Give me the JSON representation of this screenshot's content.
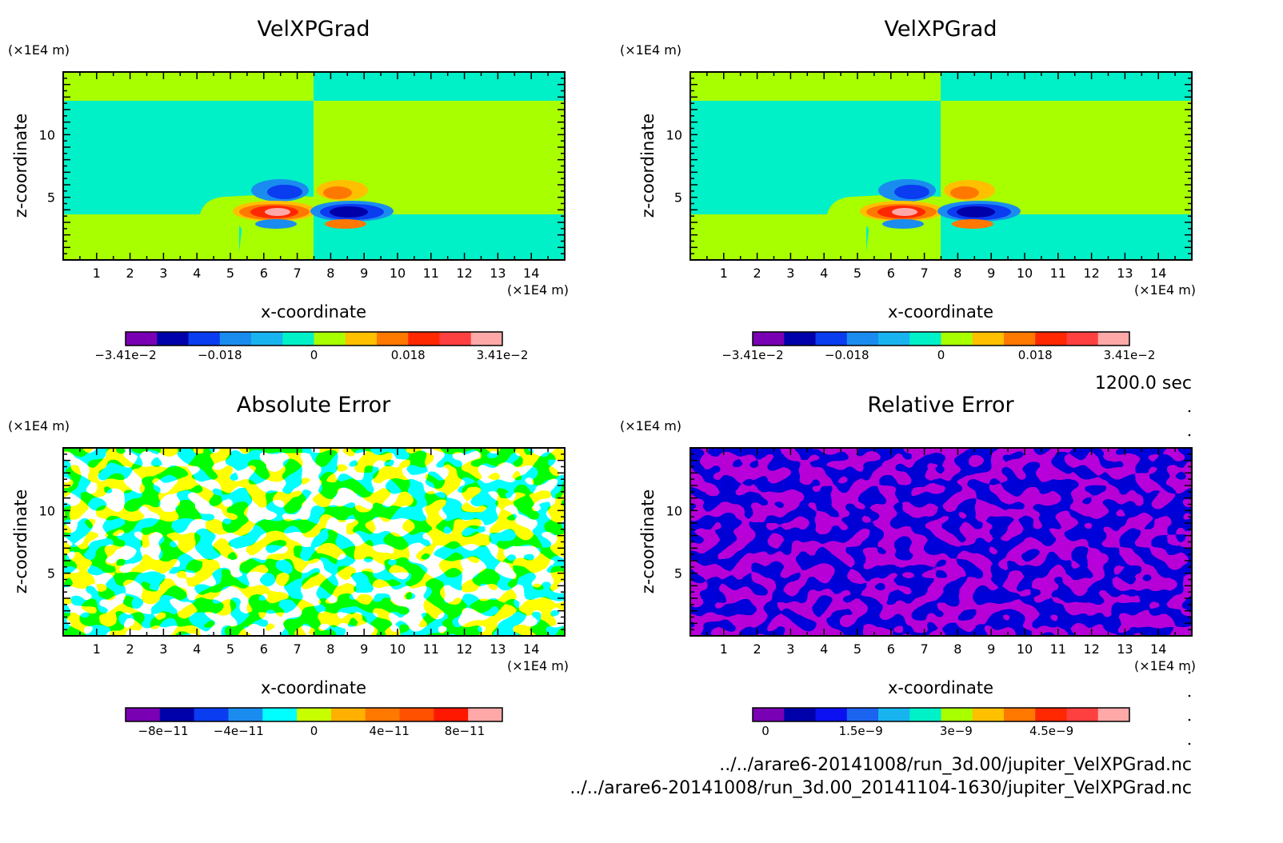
{
  "panel_titles": [
    "VelXPGrad",
    "VelXPGrad",
    "Absolute Error",
    "Relative Error"
  ],
  "time_label": "1200.0 sec",
  "file_paths": [
    "../../arare6-20141008/run_3d.00/jupiter_VelXPGrad.nc",
    "../../arare6-20141008/run_3d.00_20141104-1630/jupiter_VelXPGrad.nc"
  ],
  "chart_data": [
    {
      "type": "heatmap",
      "title": "VelXPGrad",
      "xlabel": "x-coordinate",
      "ylabel": "z-coordinate",
      "x_unit": "(×1E4 m)",
      "y_unit": "(×1E4 m)",
      "xlim": [
        0,
        15
      ],
      "ylim": [
        0,
        15
      ],
      "x_ticks": [
        "1",
        "2",
        "3",
        "4",
        "5",
        "6",
        "7",
        "8",
        "9",
        "10",
        "11",
        "12",
        "13",
        "14"
      ],
      "y_ticks": [
        "5",
        "10"
      ],
      "colorbar": {
        "range": [
          -0.0341,
          0.0341
        ],
        "tick_labels": [
          "−3.41e−2",
          "−0.018",
          "0",
          "0.018",
          "3.41e−2"
        ],
        "colors": [
          "#7a00b4",
          "#0000aa",
          "#0a3cf0",
          "#1a8cf0",
          "#18b4f0",
          "#00f0c8",
          "#a8ff00",
          "#ffc000",
          "#ff7800",
          "#ff2800",
          "#ff4040",
          "#ffa8a8"
        ]
      }
    },
    {
      "type": "heatmap",
      "title": "VelXPGrad",
      "xlabel": "x-coordinate",
      "ylabel": "z-coordinate",
      "x_unit": "(×1E4 m)",
      "y_unit": "(×1E4 m)",
      "xlim": [
        0,
        15
      ],
      "ylim": [
        0,
        15
      ],
      "x_ticks": [
        "1",
        "2",
        "3",
        "4",
        "5",
        "6",
        "7",
        "8",
        "9",
        "10",
        "11",
        "12",
        "13",
        "14"
      ],
      "y_ticks": [
        "5",
        "10"
      ],
      "colorbar": {
        "range": [
          -0.0341,
          0.0341
        ],
        "tick_labels": [
          "−3.41e−2",
          "−0.018",
          "0",
          "0.018",
          "3.41e−2"
        ],
        "colors": [
          "#7a00b4",
          "#0000aa",
          "#0a3cf0",
          "#1a8cf0",
          "#18b4f0",
          "#00f0c8",
          "#a8ff00",
          "#ffc000",
          "#ff7800",
          "#ff2800",
          "#ff4040",
          "#ffa8a8"
        ]
      }
    },
    {
      "type": "heatmap",
      "title": "Absolute Error",
      "xlabel": "x-coordinate",
      "ylabel": "z-coordinate",
      "x_unit": "(×1E4 m)",
      "y_unit": "(×1E4 m)",
      "xlim": [
        0,
        15
      ],
      "ylim": [
        0,
        15
      ],
      "x_ticks": [
        "1",
        "2",
        "3",
        "4",
        "5",
        "6",
        "7",
        "8",
        "9",
        "10",
        "11",
        "12",
        "13",
        "14"
      ],
      "y_ticks": [
        "5",
        "10"
      ],
      "colorbar": {
        "range": [
          -1e-10,
          1e-10
        ],
        "tick_labels": [
          "−8e−11",
          "−4e−11",
          "0",
          "4e−11",
          "8e−11"
        ],
        "colors": [
          "#7a00b4",
          "#0000aa",
          "#0a3cf0",
          "#1a8cf0",
          "#00ffff",
          "#c8ff00",
          "#ffb000",
          "#ff7800",
          "#ff5000",
          "#ff1800",
          "#ffa8a8"
        ]
      }
    },
    {
      "type": "heatmap",
      "title": "Relative Error",
      "xlabel": "x-coordinate",
      "ylabel": "z-coordinate",
      "x_unit": "(×1E4 m)",
      "y_unit": "(×1E4 m)",
      "xlim": [
        0,
        15
      ],
      "ylim": [
        0,
        15
      ],
      "x_ticks": [
        "1",
        "2",
        "3",
        "4",
        "5",
        "6",
        "7",
        "8",
        "9",
        "10",
        "11",
        "12",
        "13",
        "14"
      ],
      "y_ticks": [
        "5",
        "10"
      ],
      "colorbar": {
        "range": [
          0,
          5.5e-09
        ],
        "tick_labels": [
          "0",
          "1.5e−9",
          "3e−9",
          "4.5e−9"
        ],
        "colors": [
          "#7a00b4",
          "#0000aa",
          "#0a10f0",
          "#1a64f0",
          "#18b4f0",
          "#00f0c8",
          "#a8ff00",
          "#ffc000",
          "#ff7800",
          "#ff2800",
          "#ff4040",
          "#ffa8a8"
        ]
      }
    }
  ]
}
